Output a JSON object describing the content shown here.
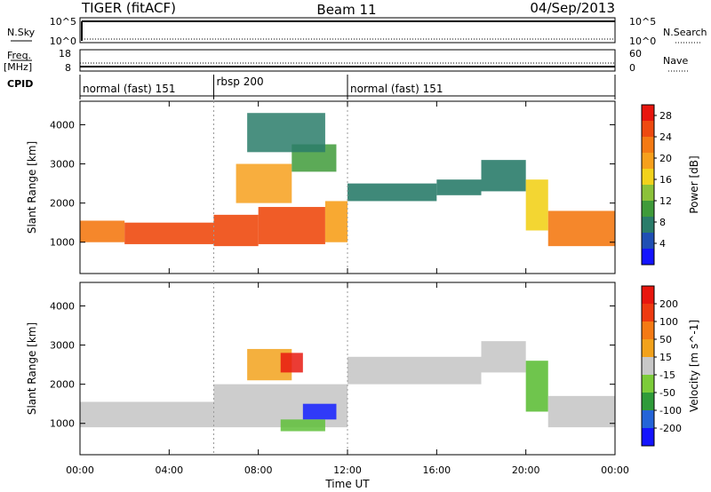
{
  "header": {
    "title": "TIGER (fitACF)",
    "beam": "Beam 11",
    "date": "04/Sep/2013"
  },
  "panels": {
    "nsky": {
      "label": "N.Sky",
      "ticks": [
        "10^5",
        "10^0"
      ]
    },
    "nsearch": {
      "label": "N.Search",
      "ticks": [
        "10^5",
        "10^0"
      ]
    },
    "freq": {
      "label": "Freq.",
      "unit": "[MHz]",
      "ticks": [
        "18",
        "8"
      ]
    },
    "nave": {
      "label": "Nave",
      "ticks": [
        "60",
        "0"
      ]
    },
    "cpid": {
      "label": "CPID",
      "segments": [
        {
          "label": "normal (fast) 151",
          "start_h": 0.0,
          "end_h": 6.0
        },
        {
          "label": "rbsp 200",
          "start_h": 6.0,
          "end_h": 12.0
        },
        {
          "label": "normal (fast) 151",
          "start_h": 12.0,
          "end_h": 24.0
        }
      ]
    }
  },
  "chart_data": [
    {
      "type": "heatmap",
      "quantity": "power",
      "xlabel": "Time UT",
      "ylabel": "Slant Range [km]",
      "xlim": [
        0,
        24
      ],
      "ylim": [
        200,
        4600
      ],
      "xticks": [
        "00:00",
        "04:00",
        "08:00",
        "12:00",
        "16:00",
        "20:00",
        "00:00"
      ],
      "yticks": [
        1000,
        2000,
        3000,
        4000
      ],
      "colorbar": {
        "label": "Power [dB]",
        "ticks": [
          4,
          8,
          12,
          16,
          20,
          24,
          28
        ],
        "range": [
          0,
          30
        ],
        "colors": [
          "#1414ff",
          "#1f4fb4",
          "#2a7c6a",
          "#3f9b3a",
          "#8cc23a",
          "#f2d21c",
          "#f7a01c",
          "#f47a14",
          "#ee4a10",
          "#e8160e"
        ]
      },
      "bands": [
        {
          "start_h": 0.0,
          "end_h": 2.0,
          "lower_km": 1000,
          "upper_km": 1550,
          "level": 22
        },
        {
          "start_h": 2.0,
          "end_h": 6.0,
          "lower_km": 950,
          "upper_km": 1500,
          "level": 24
        },
        {
          "start_h": 6.0,
          "end_h": 8.0,
          "lower_km": 900,
          "upper_km": 1700,
          "level": 26
        },
        {
          "start_h": 8.0,
          "end_h": 11.0,
          "lower_km": 950,
          "upper_km": 1900,
          "level": 24
        },
        {
          "start_h": 11.0,
          "end_h": 12.0,
          "lower_km": 1000,
          "upper_km": 2050,
          "level": 18
        },
        {
          "start_h": 12.0,
          "end_h": 16.0,
          "lower_km": 2050,
          "upper_km": 2500,
          "level": 6
        },
        {
          "start_h": 16.0,
          "end_h": 18.0,
          "lower_km": 2200,
          "upper_km": 2600,
          "level": 6
        },
        {
          "start_h": 18.0,
          "end_h": 20.0,
          "lower_km": 2300,
          "upper_km": 3100,
          "level": 8
        },
        {
          "start_h": 20.0,
          "end_h": 21.0,
          "lower_km": 1300,
          "upper_km": 2600,
          "level": 16
        },
        {
          "start_h": 21.0,
          "end_h": 24.0,
          "lower_km": 900,
          "upper_km": 1800,
          "level": 22
        }
      ],
      "patches": [
        {
          "start_h": 7.0,
          "end_h": 9.5,
          "lower_km": 2000,
          "upper_km": 3000,
          "level": 18
        },
        {
          "start_h": 9.5,
          "end_h": 11.5,
          "lower_km": 2800,
          "upper_km": 3500,
          "level": 10
        },
        {
          "start_h": 7.5,
          "end_h": 11.0,
          "lower_km": 3300,
          "upper_km": 4300,
          "level": 6
        }
      ]
    },
    {
      "type": "heatmap",
      "quantity": "velocity",
      "xlabel": "Time UT",
      "ylabel": "Slant Range [km]",
      "xlim": [
        0,
        24
      ],
      "ylim": [
        200,
        4600
      ],
      "xticks": [
        "00:00",
        "04:00",
        "08:00",
        "12:00",
        "16:00",
        "20:00",
        "00:00"
      ],
      "yticks": [
        1000,
        2000,
        3000,
        4000
      ],
      "colorbar": {
        "label": "Velocity [m s^-1]",
        "ticks": [
          "200",
          "100",
          "50",
          "15",
          "-15",
          "-50",
          "-100",
          "-200"
        ],
        "colors": [
          "#1414ff",
          "#2464d8",
          "#2f9b3a",
          "#7ccc3a",
          "#c8c8c8",
          "#f2a21c",
          "#f47a14",
          "#ee3a10",
          "#e8160e"
        ]
      },
      "bands": [
        {
          "start_h": 0.0,
          "end_h": 6.0,
          "lower_km": 900,
          "upper_km": 1550,
          "level": "gray"
        },
        {
          "start_h": 6.0,
          "end_h": 12.0,
          "lower_km": 900,
          "upper_km": 2000,
          "level": "gray"
        },
        {
          "start_h": 12.0,
          "end_h": 18.0,
          "lower_km": 2000,
          "upper_km": 2700,
          "level": "gray"
        },
        {
          "start_h": 18.0,
          "end_h": 20.0,
          "lower_km": 2300,
          "upper_km": 3100,
          "level": "gray"
        },
        {
          "start_h": 20.0,
          "end_h": 21.0,
          "lower_km": 1300,
          "upper_km": 2600,
          "level": "green"
        },
        {
          "start_h": 21.0,
          "end_h": 24.0,
          "lower_km": 900,
          "upper_km": 1700,
          "level": "gray"
        }
      ],
      "patches": [
        {
          "start_h": 10.0,
          "end_h": 11.5,
          "lower_km": 1100,
          "upper_km": 1500,
          "level": "blue"
        },
        {
          "start_h": 9.0,
          "end_h": 11.0,
          "lower_km": 800,
          "upper_km": 1100,
          "level": "green"
        },
        {
          "start_h": 7.5,
          "end_h": 9.5,
          "lower_km": 2100,
          "upper_km": 2900,
          "level": "orange"
        },
        {
          "start_h": 9.0,
          "end_h": 10.0,
          "lower_km": 2300,
          "upper_km": 2800,
          "level": "red"
        }
      ]
    }
  ],
  "xaxis": {
    "label": "Time UT"
  }
}
